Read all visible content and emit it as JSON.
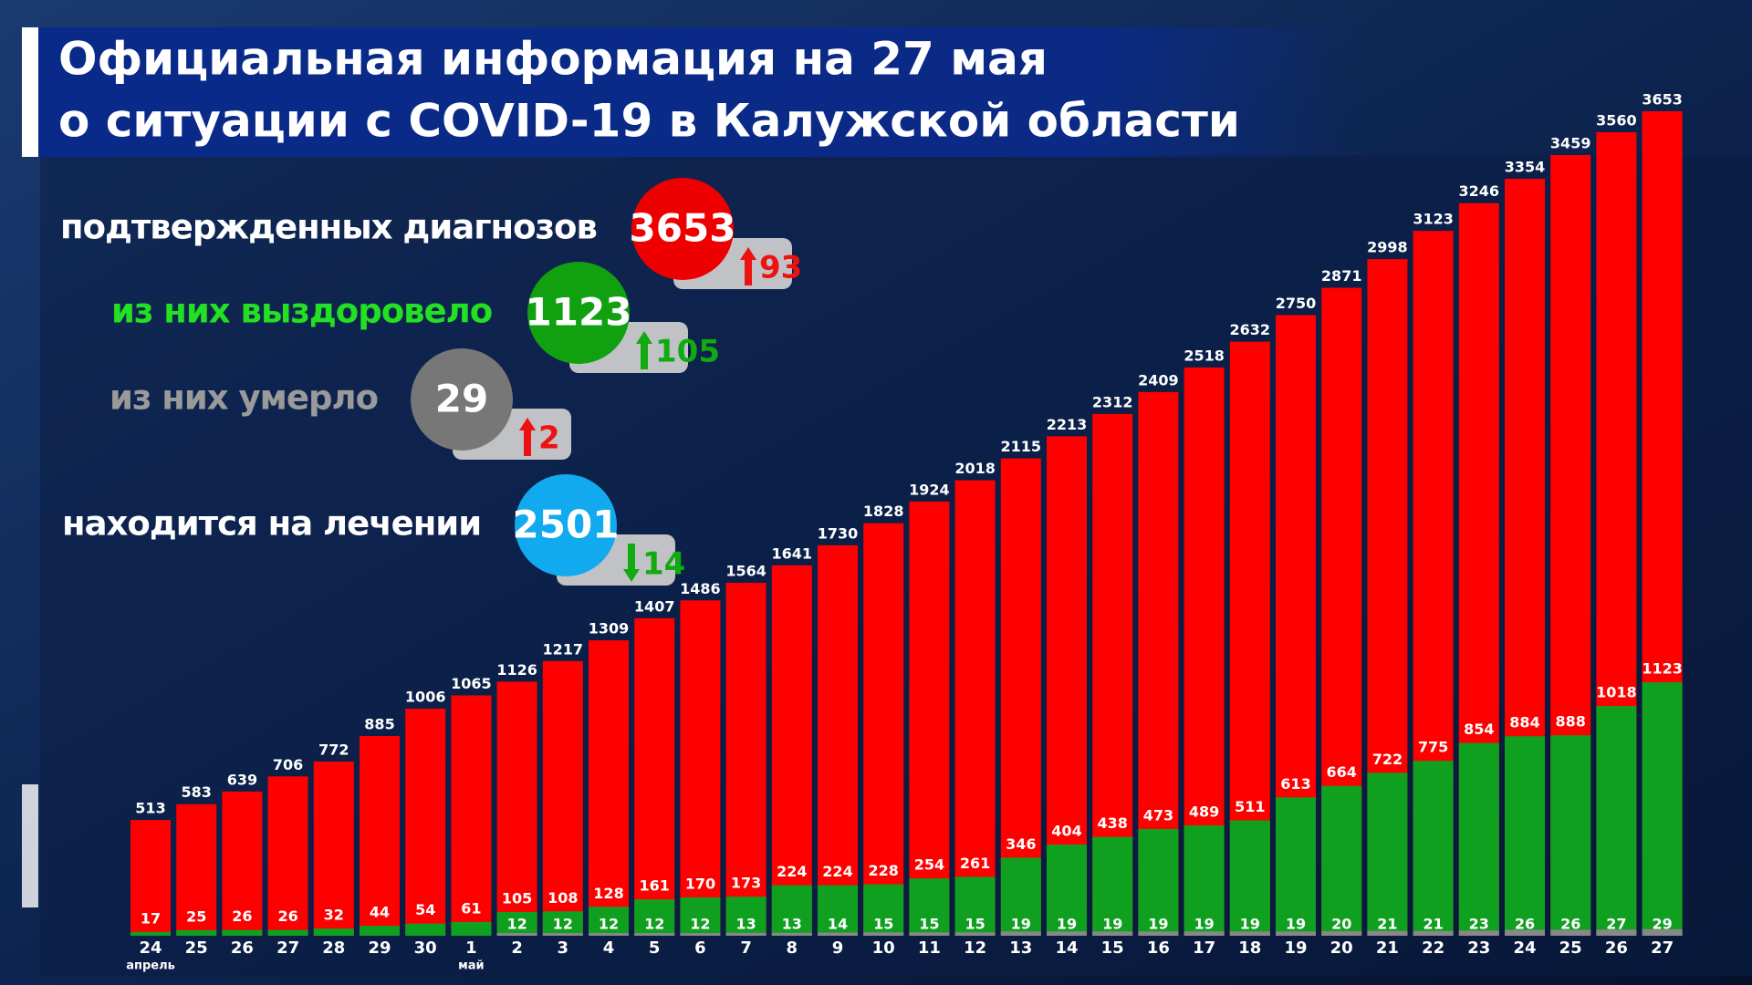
{
  "header": {
    "title_lines": [
      "Официальная информация на 27 мая",
      "о ситуации с COVID-19 в Калужской области"
    ]
  },
  "stats": [
    {
      "label": "подтвержденных диагнозов",
      "value": 3653,
      "change": 93,
      "direction": "up",
      "label_color": "#ffffff",
      "circle_color": "#ee0000",
      "change_color": "#ee1111"
    },
    {
      "label": "из них выздоровело",
      "value": 1123,
      "change": 105,
      "direction": "up",
      "label_color": "#22e022",
      "circle_color": "#10a010",
      "change_color": "#11aa11"
    },
    {
      "label": "из них умерло",
      "value": 29,
      "change": 2,
      "direction": "up",
      "label_color": "#9a9a9a",
      "circle_color": "#777777",
      "change_color": "#ee1111"
    },
    {
      "label": "находится на лечении",
      "value": 2501,
      "change": 14,
      "direction": "down",
      "label_color": "#ffffff",
      "circle_color": "#11aaee",
      "change_color": "#11aa11"
    }
  ],
  "chart_data": {
    "type": "overlap_bar",
    "categories": [
      "24",
      "25",
      "26",
      "27",
      "28",
      "29",
      "30",
      "1",
      "2",
      "3",
      "4",
      "5",
      "6",
      "7",
      "8",
      "9",
      "10",
      "11",
      "12",
      "13",
      "14",
      "15",
      "16",
      "17",
      "18",
      "19",
      "20",
      "21",
      "22",
      "23",
      "24",
      "25",
      "26",
      "27"
    ],
    "x_groups": [
      {
        "label": "апрель",
        "categories_start": 0
      },
      {
        "label": "май",
        "categories_start": 7
      }
    ],
    "series": [
      {
        "name": "подтвержденных диагнозов",
        "color": "#ff0000",
        "values": [
          513,
          583,
          639,
          706,
          772,
          885,
          1006,
          1065,
          1126,
          1217,
          1309,
          1407,
          1486,
          1564,
          1641,
          1730,
          1828,
          1924,
          2018,
          2115,
          2213,
          2312,
          2409,
          2518,
          2632,
          2750,
          2871,
          2998,
          3123,
          3246,
          3354,
          3459,
          3560,
          3653
        ]
      },
      {
        "name": "выздоровело",
        "color": "#10a020",
        "values": [
          17,
          25,
          26,
          26,
          32,
          44,
          54,
          61,
          105,
          108,
          128,
          161,
          170,
          173,
          224,
          224,
          228,
          254,
          261,
          346,
          404,
          438,
          473,
          489,
          511,
          613,
          664,
          722,
          775,
          854,
          884,
          888,
          1018,
          1123
        ]
      },
      {
        "name": "умерло",
        "color": "#888888",
        "values": [
          null,
          null,
          null,
          null,
          null,
          null,
          null,
          null,
          12,
          12,
          12,
          12,
          12,
          13,
          13,
          14,
          15,
          15,
          15,
          19,
          19,
          19,
          19,
          19,
          19,
          19,
          20,
          21,
          21,
          23,
          26,
          26,
          27,
          29
        ]
      }
    ]
  }
}
